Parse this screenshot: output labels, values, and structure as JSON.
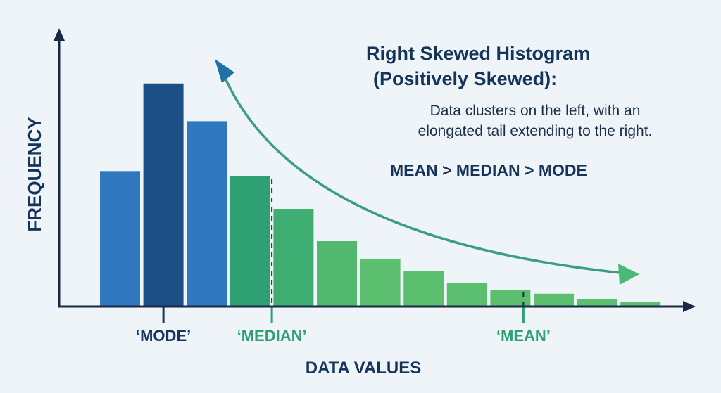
{
  "header": {
    "title_line1": "Right Skewed Histogram",
    "title_line2": "(Positively Skewed):",
    "description_line1": "Data clusters on the left, with an",
    "description_line2": "elongated tail extending to the right.",
    "relation": "MEAN > MEDIAN > MODE"
  },
  "chart_data": {
    "type": "bar",
    "xlabel": "DATA VALUES",
    "ylabel": "FREQUENCY",
    "values": [
      100,
      165,
      137,
      96,
      72,
      48,
      35,
      26,
      17,
      12,
      9,
      5,
      3
    ],
    "ylim": [
      0,
      180
    ],
    "grid": false,
    "legend": "none",
    "bar_colors": [
      "#2f78bf",
      "#1b4f86",
      "#2f78bf",
      "#2f9f74",
      "#3fae72",
      "#52b86f",
      "#5cbf70",
      "#5cbf70",
      "#5cbf70",
      "#5cbf70",
      "#5cbf70",
      "#5cbf70",
      "#5cbf70"
    ],
    "markers": [
      {
        "label": "‘MODE’",
        "bar_index": 1,
        "color": "#17345c",
        "dashed": false
      },
      {
        "label": "‘MEDIAN’",
        "bar_index": 3.5,
        "color": "#2f9f74",
        "dashed": true
      },
      {
        "label": "‘MEAN’",
        "bar_index": 9.3,
        "color": "#2f9f74",
        "dashed": true
      }
    ],
    "colors": {
      "axis": "#1b2a44",
      "tail_arrow": "#3a9e85",
      "text_dark": "#15345a"
    }
  }
}
